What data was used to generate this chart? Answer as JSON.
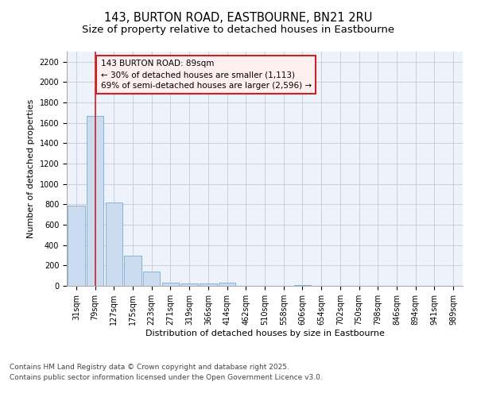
{
  "title1": "143, BURTON ROAD, EASTBOURNE, BN21 2RU",
  "title2": "Size of property relative to detached houses in Eastbourne",
  "xlabel": "Distribution of detached houses by size in Eastbourne",
  "ylabel": "Number of detached properties",
  "categories": [
    "31sqm",
    "79sqm",
    "127sqm",
    "175sqm",
    "223sqm",
    "271sqm",
    "319sqm",
    "366sqm",
    "414sqm",
    "462sqm",
    "510sqm",
    "558sqm",
    "606sqm",
    "654sqm",
    "702sqm",
    "750sqm",
    "798sqm",
    "846sqm",
    "894sqm",
    "941sqm",
    "989sqm"
  ],
  "values": [
    790,
    1670,
    820,
    300,
    140,
    30,
    25,
    20,
    30,
    0,
    0,
    0,
    10,
    0,
    0,
    0,
    0,
    0,
    0,
    0,
    0
  ],
  "bar_color": "#ccdcf0",
  "bar_edge_color": "#7aaad0",
  "vline_x_idx": 1,
  "vline_color": "#cc2222",
  "annotation_text": "143 BURTON ROAD: 89sqm\n← 30% of detached houses are smaller (1,113)\n69% of semi-detached houses are larger (2,596) →",
  "annotation_box_facecolor": "#fff0f0",
  "annotation_box_edgecolor": "#cc2222",
  "ylim": [
    0,
    2300
  ],
  "yticks": [
    0,
    200,
    400,
    600,
    800,
    1000,
    1200,
    1400,
    1600,
    1800,
    2000,
    2200
  ],
  "grid_color": "#c8c8d8",
  "plot_bg_color": "#eef2fa",
  "fig_bg_color": "#ffffff",
  "footer1": "Contains HM Land Registry data © Crown copyright and database right 2025.",
  "footer2": "Contains public sector information licensed under the Open Government Licence v3.0.",
  "title_fontsize": 10.5,
  "subtitle_fontsize": 9.5,
  "tick_fontsize": 7,
  "axis_label_fontsize": 8,
  "annot_fontsize": 7.5,
  "footer_fontsize": 6.5
}
